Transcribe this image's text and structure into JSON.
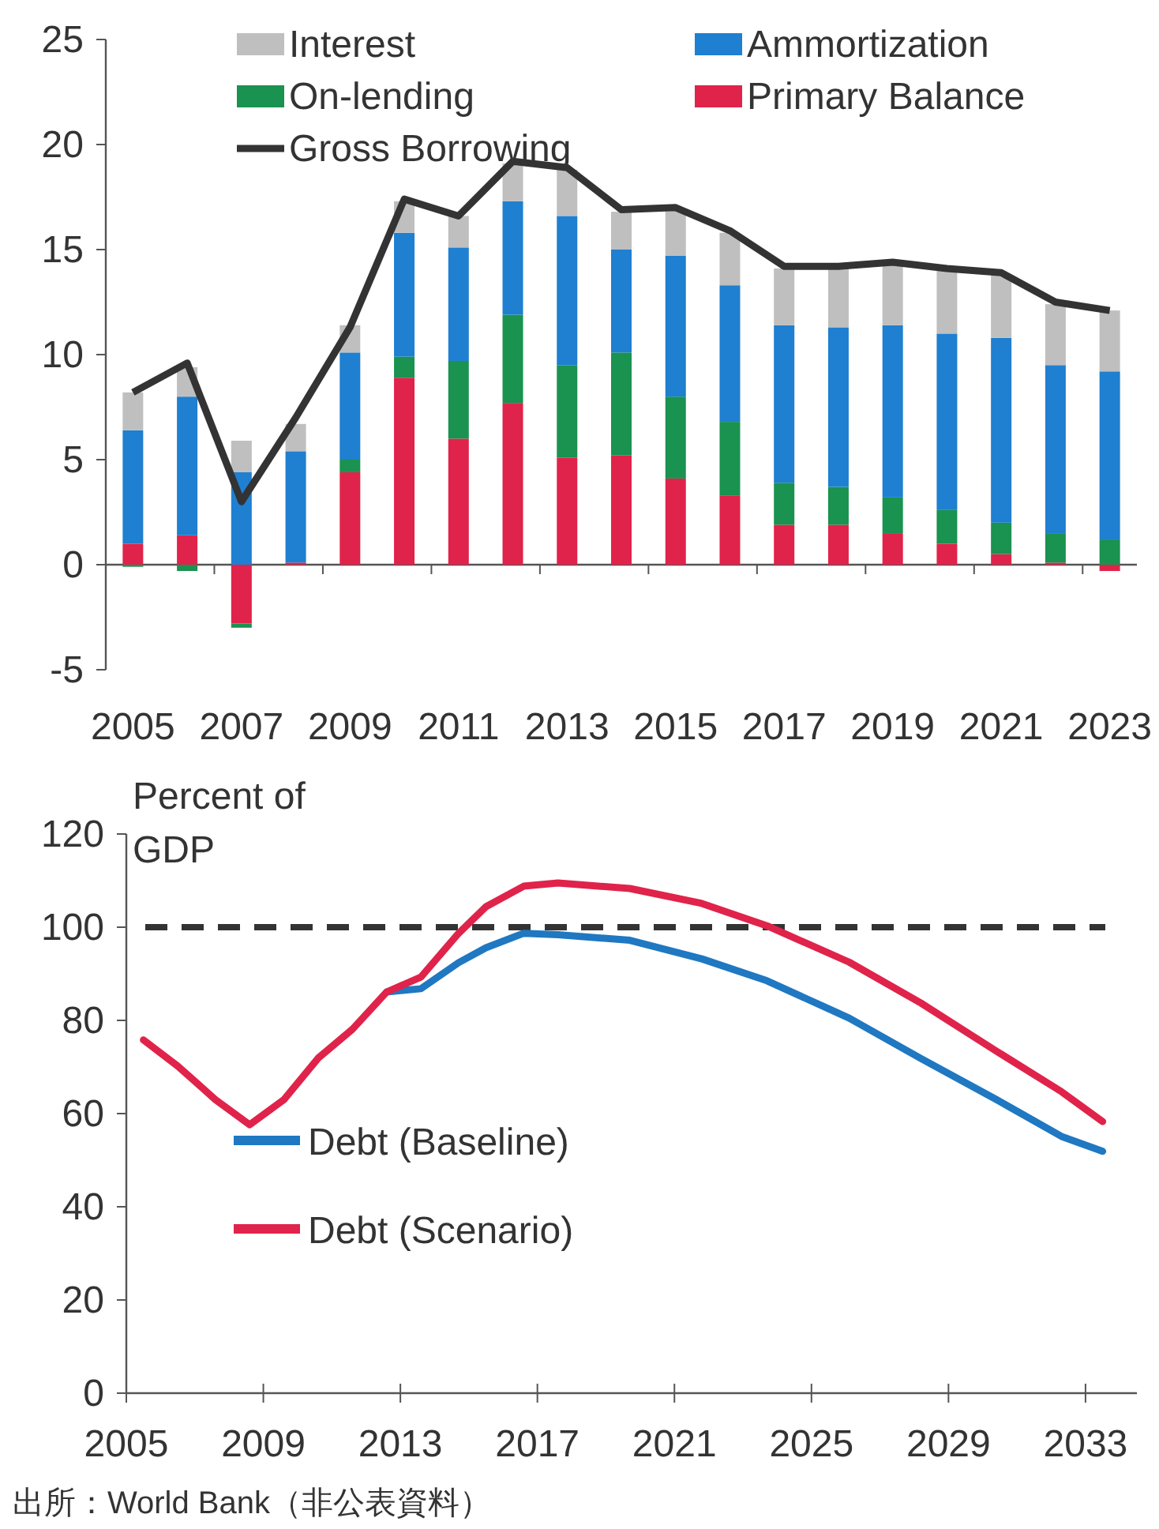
{
  "chart_data": [
    {
      "type": "bar",
      "stacked": true,
      "legend": "top",
      "categories": [
        "2005",
        null,
        "2007",
        null,
        "2009",
        null,
        "2011",
        null,
        "2013",
        null,
        "2015",
        null,
        "2017",
        null,
        "2019",
        null,
        "2021",
        null,
        "2023"
      ],
      "ylim": [
        -5,
        25
      ],
      "yticks": [
        -5,
        0,
        5,
        10,
        15,
        20,
        25
      ],
      "series": [
        {
          "name": "Primary Balance",
          "color": "#e0234a",
          "values": [
            1.0,
            1.4,
            -2.8,
            0.1,
            4.4,
            8.9,
            6.0,
            7.7,
            5.1,
            5.2,
            4.1,
            3.3,
            1.9,
            1.9,
            1.5,
            1.0,
            0.5,
            0.1,
            -0.3
          ]
        },
        {
          "name": "On-lending",
          "color": "#1a9250",
          "values": [
            -0.1,
            -0.3,
            -0.2,
            0,
            0.6,
            1.0,
            3.7,
            4.2,
            4.4,
            4.9,
            3.9,
            3.5,
            2.0,
            1.8,
            1.7,
            1.6,
            1.5,
            1.4,
            1.2
          ]
        },
        {
          "name": "Ammortization",
          "color": "#1f7fd0",
          "values": [
            5.4,
            6.6,
            4.4,
            5.3,
            5.1,
            5.9,
            5.4,
            5.4,
            7.1,
            4.9,
            6.7,
            6.5,
            7.5,
            7.6,
            8.2,
            8.4,
            8.8,
            8.0,
            8.0
          ]
        },
        {
          "name": "Interest",
          "color": "#bfbfbf",
          "values": [
            1.8,
            1.4,
            1.5,
            1.3,
            1.3,
            1.5,
            1.5,
            1.8,
            2.2,
            1.8,
            2.2,
            2.5,
            2.7,
            2.8,
            2.9,
            3.0,
            3.0,
            2.9,
            2.9
          ]
        },
        {
          "name": "Gross Borrowing",
          "type": "line",
          "color": "#333333",
          "values": [
            8.2,
            9.6,
            3.0,
            7.0,
            11.3,
            17.4,
            16.6,
            19.2,
            18.9,
            16.9,
            17.0,
            15.9,
            14.2,
            14.2,
            14.4,
            14.1,
            13.9,
            12.5,
            12.1
          ]
        }
      ]
    },
    {
      "type": "line",
      "legend": "left",
      "ylabel": "Percent of GDP",
      "xlim": [
        2005,
        2034.5
      ],
      "xticks": [
        2005,
        2009,
        2013,
        2017,
        2021,
        2025,
        2029,
        2033
      ],
      "ylim": [
        0,
        120
      ],
      "yticks": [
        0,
        20,
        40,
        60,
        80,
        100,
        120
      ],
      "ref_lines": [
        {
          "axis": "y",
          "value": 100,
          "color": "#333333",
          "line_style": "dashed"
        }
      ],
      "series": [
        {
          "name": "Debt (Baseline)",
          "color": "#1f78c1",
          "x": [
            2012.6,
            2013.6,
            2014.7,
            2015.5,
            2016.6,
            2017.6,
            2019.7,
            2021.8,
            2023.7,
            2026.1,
            2028.2,
            2030.4,
            2032.3,
            2033.5
          ],
          "values": [
            86.1,
            86.8,
            92.4,
            95.6,
            98.7,
            98.4,
            97.2,
            93.2,
            88.5,
            80.5,
            71.8,
            63,
            55.1,
            51.9
          ]
        },
        {
          "name": "Debt (Scenario)",
          "color": "#e0234a",
          "x": [
            2005.5,
            2006.5,
            2007.6,
            2008.6,
            2009.6,
            2010.6,
            2011.6,
            2012.6,
            2013.6,
            2014.7,
            2015.5,
            2016.6,
            2017.6,
            2019.7,
            2021.8,
            2023.7,
            2026.1,
            2028.2,
            2030.4,
            2032.3,
            2033.5
          ],
          "values": [
            75.8,
            70.2,
            63,
            57.6,
            63,
            71.9,
            78.1,
            86.1,
            89.3,
            98.7,
            104.4,
            108.8,
            109.5,
            108.3,
            105.1,
            100.3,
            92.5,
            83.7,
            73.4,
            64.7,
            58.3
          ]
        }
      ],
      "annotations": [
        "出所：World Bank（非公表資料）"
      ]
    }
  ]
}
